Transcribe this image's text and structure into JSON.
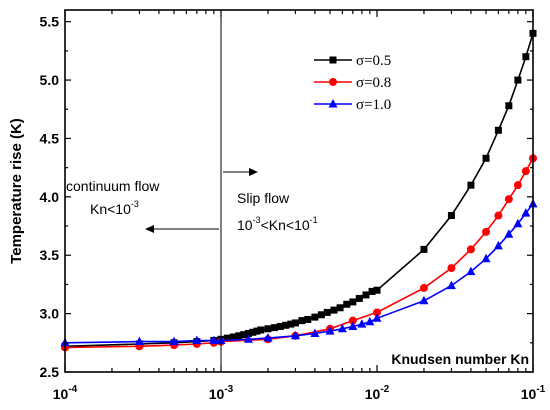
{
  "chart_data": {
    "type": "line",
    "xscale": "log",
    "xlim": [
      0.0001,
      0.1
    ],
    "ylim": [
      2.5,
      5.6
    ],
    "yticks": [
      "2.5",
      "3.0",
      "3.5",
      "4.0",
      "4.5",
      "5.0",
      "5.5"
    ],
    "xticks": [
      {
        "base": "10",
        "exp": "-4"
      },
      {
        "base": "10",
        "exp": "-3"
      },
      {
        "base": "10",
        "exp": "-2"
      },
      {
        "base": "10",
        "exp": "-1"
      }
    ],
    "ylabel": "Temperature rise (K)",
    "xlabel": "Knudsen number Kn",
    "legend_position": "top-right",
    "series": [
      {
        "name": "σ=0.5",
        "color": "#000000",
        "marker": "square",
        "x": [
          0.0001,
          0.0003,
          0.0005,
          0.0007,
          0.0009,
          0.001,
          0.0011,
          0.0012,
          0.0013,
          0.0014,
          0.0015,
          0.0016,
          0.0017,
          0.0018,
          0.002,
          0.0022,
          0.0024,
          0.0026,
          0.0028,
          0.003,
          0.0033,
          0.0036,
          0.004,
          0.0044,
          0.0048,
          0.0053,
          0.0058,
          0.0064,
          0.007,
          0.0077,
          0.0085,
          0.0093,
          0.01,
          0.02,
          0.03,
          0.04,
          0.05,
          0.06,
          0.07,
          0.08,
          0.09,
          0.1
        ],
        "y": [
          2.72,
          2.74,
          2.75,
          2.76,
          2.77,
          2.78,
          2.79,
          2.8,
          2.81,
          2.82,
          2.83,
          2.84,
          2.85,
          2.86,
          2.87,
          2.88,
          2.89,
          2.9,
          2.91,
          2.92,
          2.94,
          2.95,
          2.97,
          2.99,
          3.01,
          3.03,
          3.05,
          3.08,
          3.1,
          3.13,
          3.16,
          3.19,
          3.2,
          3.55,
          3.84,
          4.1,
          4.33,
          4.57,
          4.78,
          5.0,
          5.2,
          5.4
        ]
      },
      {
        "name": "σ=0.8",
        "color": "#ff0000",
        "marker": "circle",
        "x": [
          0.0001,
          0.0003,
          0.0005,
          0.0007,
          0.0009,
          0.001,
          0.002,
          0.003,
          0.005,
          0.007,
          0.01,
          0.02,
          0.03,
          0.04,
          0.05,
          0.06,
          0.07,
          0.08,
          0.09,
          0.1
        ],
        "y": [
          2.71,
          2.72,
          2.73,
          2.74,
          2.75,
          2.76,
          2.78,
          2.81,
          2.87,
          2.94,
          3.01,
          3.22,
          3.39,
          3.55,
          3.7,
          3.84,
          3.98,
          4.1,
          4.22,
          4.33
        ]
      },
      {
        "name": "σ=1.0",
        "color": "#0000ff",
        "marker": "triangle",
        "x": [
          0.0001,
          0.0003,
          0.0005,
          0.0007,
          0.0009,
          0.001,
          0.0015,
          0.002,
          0.003,
          0.004,
          0.005,
          0.006,
          0.007,
          0.008,
          0.009,
          0.01,
          0.02,
          0.03,
          0.04,
          0.05,
          0.06,
          0.07,
          0.08,
          0.09,
          0.1
        ],
        "y": [
          2.75,
          2.76,
          2.76,
          2.77,
          2.77,
          2.77,
          2.78,
          2.79,
          2.81,
          2.83,
          2.85,
          2.87,
          2.89,
          2.91,
          2.93,
          2.96,
          3.11,
          3.24,
          3.36,
          3.47,
          3.58,
          3.68,
          3.77,
          3.86,
          3.94
        ]
      }
    ],
    "vline_x": 0.001,
    "annotations": {
      "left": {
        "line1": "continuum flow",
        "line2_prefix": "Kn<10",
        "line2_exp": "-3"
      },
      "right": {
        "line1": "Slip flow",
        "line2_a": "10",
        "line2_a_exp": "-3",
        "line2_b": "<Kn<10",
        "line2_b_exp": "-1"
      }
    }
  }
}
